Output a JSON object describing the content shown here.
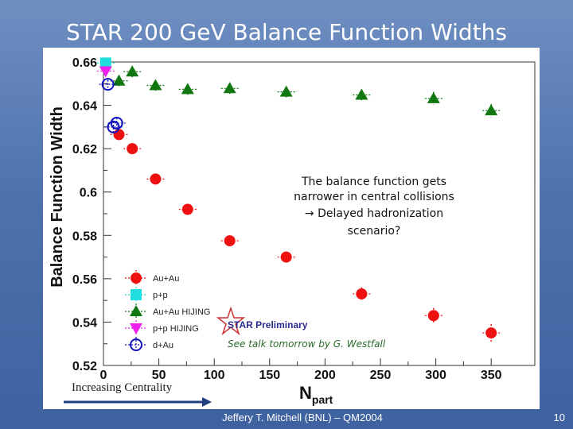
{
  "slide": {
    "title": "STAR 200 GeV Balance Function Widths",
    "footer": "Jeffery T. Mitchell (BNL) – QM2004",
    "page_number": "10",
    "centrality_label": "Increasing Centrality"
  },
  "colors": {
    "auau": "#ee1111",
    "pp": "#22dddd",
    "auau_hijing": "#117711",
    "pp_hijing": "#ee22ee",
    "dau": "#1111bb",
    "background": "#4f72ad"
  },
  "chart_data": {
    "type": "scatter",
    "xlabel": "N",
    "xlabel_sub": "part",
    "ylabel": "Balance Function Width",
    "xlim": [
      0,
      370
    ],
    "ylim": [
      0.52,
      0.66
    ],
    "x_ticks": [
      0,
      50,
      100,
      150,
      200,
      250,
      300,
      350
    ],
    "y_ticks": [
      0.52,
      0.54,
      0.56,
      0.58,
      0.6,
      0.62,
      0.64,
      0.66
    ],
    "y_tick_labels": [
      "0.52",
      "0.54",
      "0.56",
      "0.58",
      "0.6",
      "0.62",
      "0.64",
      "0.66"
    ],
    "legend_position": "bottom-left",
    "series": [
      {
        "name": "Au+Au",
        "marker": "circle-filled",
        "color": "#ee1111",
        "x": [
          14,
          26,
          47,
          76,
          114,
          165,
          233,
          298,
          350
        ],
        "y": [
          0.6265,
          0.62,
          0.606,
          0.592,
          0.5775,
          0.57,
          0.553,
          0.543,
          0.535
        ],
        "yerr": [
          0.002,
          0.002,
          0.0025,
          0.0025,
          0.0025,
          0.0025,
          0.003,
          0.0035,
          0.004
        ]
      },
      {
        "name": "p+p",
        "marker": "square-filled",
        "color": "#22dddd",
        "x": [
          2
        ],
        "y": [
          0.6595
        ],
        "yerr": [
          0.002
        ]
      },
      {
        "name": "Au+Au HIJING",
        "marker": "triangle-up",
        "color": "#117711",
        "x": [
          14,
          26,
          47,
          76,
          114,
          165,
          233,
          298,
          350
        ],
        "y": [
          0.6513,
          0.6555,
          0.6492,
          0.6474,
          0.6478,
          0.6462,
          0.6448,
          0.6432,
          0.6376
        ],
        "yerr": [
          0.0025,
          0.0025,
          0.0025,
          0.0025,
          0.0025,
          0.0025,
          0.0025,
          0.003,
          0.003
        ]
      },
      {
        "name": "p+p HIJING",
        "marker": "triangle-down",
        "color": "#ee22ee",
        "x": [
          2
        ],
        "y": [
          0.6558
        ],
        "yerr": [
          0.002
        ]
      },
      {
        "name": "d+Au",
        "marker": "circle-open",
        "color": "#1111bb",
        "x": [
          4,
          9,
          12
        ],
        "y": [
          0.6497,
          0.63,
          0.6318
        ],
        "yerr": [
          0.002,
          0.0025,
          0.0025
        ]
      }
    ],
    "annotations": {
      "note_lines": [
        "The balance function gets",
        "narrower in central collisions",
        "→ Delayed hadronization",
        "scenario?"
      ],
      "preliminary_label": "STAR Preliminary",
      "talk_note": "See talk tomorrow by G. Westfall"
    }
  }
}
